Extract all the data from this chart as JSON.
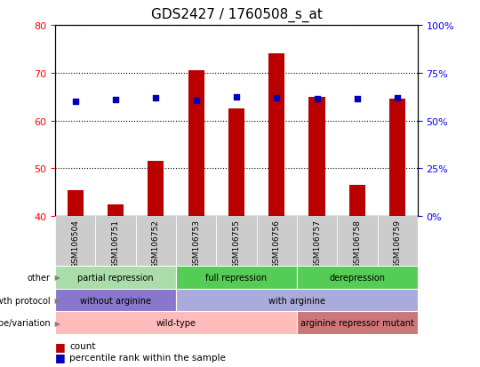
{
  "title": "GDS2427 / 1760508_s_at",
  "samples": [
    "GSM106504",
    "GSM106751",
    "GSM106752",
    "GSM106753",
    "GSM106755",
    "GSM106756",
    "GSM106757",
    "GSM106758",
    "GSM106759"
  ],
  "counts": [
    45.5,
    42.5,
    51.5,
    70.5,
    62.5,
    74.0,
    65.0,
    46.5,
    64.5
  ],
  "percentile_ranks": [
    60.0,
    61.0,
    62.0,
    60.5,
    62.5,
    62.0,
    61.5,
    61.5,
    62.0
  ],
  "ylim_left": [
    40,
    80
  ],
  "ylim_right": [
    0,
    100
  ],
  "yticks_left": [
    40,
    50,
    60,
    70,
    80
  ],
  "yticks_right": [
    0,
    25,
    50,
    75,
    100
  ],
  "bar_color": "#bb0000",
  "dot_color": "#0000bb",
  "title_fontsize": 11,
  "row1_groups": [
    {
      "text": "partial repression",
      "start": 0,
      "end": 3,
      "color": "#aaddaa"
    },
    {
      "text": "full repression",
      "start": 3,
      "end": 6,
      "color": "#55cc55"
    },
    {
      "text": "derepression",
      "start": 6,
      "end": 9,
      "color": "#55cc55"
    }
  ],
  "row2_groups": [
    {
      "text": "without arginine",
      "start": 0,
      "end": 3,
      "color": "#8877cc"
    },
    {
      "text": "with arginine",
      "start": 3,
      "end": 9,
      "color": "#aaaadd"
    }
  ],
  "row3_groups": [
    {
      "text": "wild-type",
      "start": 0,
      "end": 6,
      "color": "#ffbbbb"
    },
    {
      "text": "arginine repressor mutant",
      "start": 6,
      "end": 9,
      "color": "#cc7777"
    }
  ],
  "row_labels": [
    "other",
    "growth protocol",
    "genotype/variation"
  ]
}
